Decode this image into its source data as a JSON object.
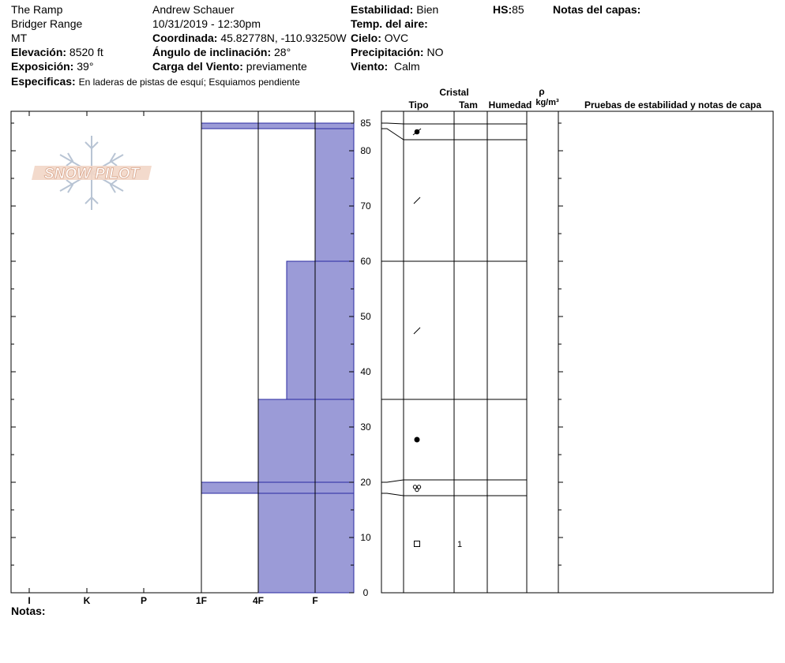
{
  "header": {
    "location": "The Ramp",
    "range": "Bridger Range",
    "state": "MT",
    "elevation_label": "Elevación:",
    "elevation_value": "8520 ft",
    "aspect_label": "Exposición:",
    "aspect_value": "39°",
    "specifics_label": "Especificas:",
    "specifics_value": "En laderas de pistas de esquí; Esquiamos pendiente",
    "observer": "Andrew Schauer",
    "datetime": "10/31/2019 - 12:30pm",
    "coord_label": "Coordinada:",
    "coord_value": "45.82778N, -110.93250W",
    "incline_label": "Ángulo de inclinación:",
    "incline_value": "28°",
    "wind_load_label": "Carga del Viento:",
    "wind_load_value": "previamente",
    "stability_label": "Estabilidad:",
    "stability_value": "Bien",
    "air_temp_label": "Temp. del aire:",
    "air_temp_value": "",
    "sky_label": "Cielo:",
    "sky_value": "OVC",
    "precip_label": "Precipitación:",
    "precip_value": "NO",
    "wind_label": "Viento:",
    "wind_value": "Calm",
    "hs_label": "HS:",
    "hs_value": "85",
    "layer_notes_label": "Notas del capas:",
    "notes_label": "Notas:"
  },
  "logo": {
    "text": "SNOW PILOT"
  },
  "columns": {
    "cristal": "Cristal",
    "tipo": "Tipo",
    "tam": "Tam",
    "humedad": "Humedad",
    "rho": "ρ",
    "rho_unit": "kg/m³",
    "pruebas": "Pruebas de estabilidad y notas de capa"
  },
  "colors": {
    "fill": "#9b9bd7",
    "stroke": "#2a2aa0"
  },
  "chart_data": {
    "type": "bar",
    "orientation": "horizontal",
    "x_categories": [
      "I",
      "K",
      "P",
      "1F",
      "4F",
      "F"
    ],
    "hardness_scale_note": "hardness index: I=1, K=2, P=3, 1F=4, 4F=5, F=6",
    "y_ticks": [
      0,
      10,
      20,
      30,
      40,
      50,
      60,
      70,
      80,
      85
    ],
    "ylim": [
      0,
      85
    ],
    "layers": [
      {
        "bottom": 0,
        "top": 18,
        "hardness": "4F",
        "hardness_index": 5,
        "grain": "facets",
        "size": "1"
      },
      {
        "bottom": 18,
        "top": 20,
        "hardness": "1F",
        "hardness_index": 4,
        "grain": "melt-freeze",
        "size": ""
      },
      {
        "bottom": 20,
        "top": 35,
        "hardness": "4F",
        "hardness_index": 5,
        "grain": "rounds",
        "size": ""
      },
      {
        "bottom": 35,
        "top": 60,
        "hardness": "F-4F",
        "hardness_index": 5.5,
        "grain": "decomposing",
        "size": ""
      },
      {
        "bottom": 60,
        "top": 84,
        "hardness": "F",
        "hardness_index": 6,
        "grain": "decomposing",
        "size": ""
      },
      {
        "bottom": 84,
        "top": 85,
        "hardness": "1F",
        "hardness_index": 4,
        "grain": "precip-particles",
        "size": ""
      }
    ]
  }
}
